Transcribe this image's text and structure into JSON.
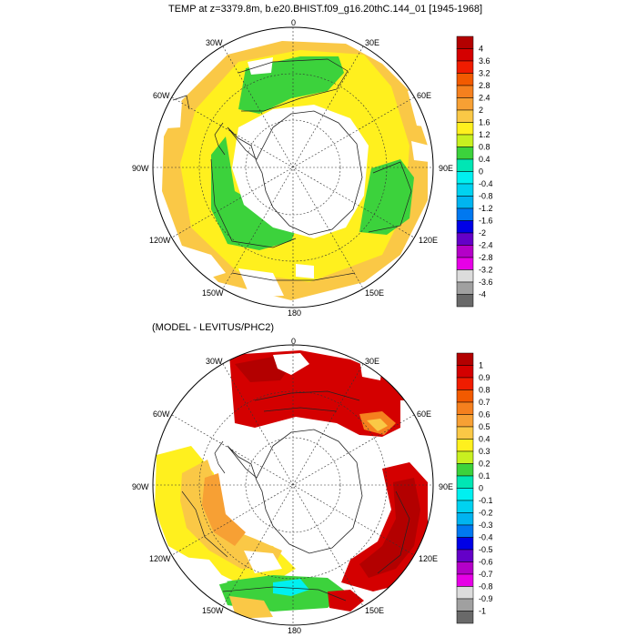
{
  "panels": [
    {
      "title": "TEMP at z=3379.8m, b.e20.BHIST.f09_g16.20thC.144_01 [1945-1968]",
      "longitude_labels": [
        "0",
        "30E",
        "60E",
        "90E",
        "120E",
        "150E",
        "180",
        "150W",
        "120W",
        "90W",
        "60W",
        "30W"
      ],
      "colorbar": {
        "labels": [
          "4",
          "3.6",
          "3.2",
          "2.8",
          "2.4",
          "2",
          "1.6",
          "1.2",
          "0.8",
          "0.4",
          "0",
          "-0.4",
          "-0.8",
          "-1.2",
          "-1.6",
          "-2",
          "-2.4",
          "-2.8",
          "-3.2",
          "-3.6",
          "-4"
        ],
        "colors": [
          "#b30000",
          "#d40000",
          "#f01c00",
          "#f25a00",
          "#f5801e",
          "#f7a034",
          "#fac846",
          "#fff01e",
          "#c8f020",
          "#3cd23c",
          "#00e6b4",
          "#00f0f0",
          "#00d2f0",
          "#00b4f0",
          "#0078f0",
          "#0000e6",
          "#6400c8",
          "#b400c8",
          "#e600e6",
          "#dcdcdc",
          "#a0a0a0",
          "#696969"
        ]
      }
    },
    {
      "title": "(MODEL - LEVITUS/PHC2)",
      "longitude_labels": [
        "0",
        "30E",
        "60E",
        "90E",
        "120E",
        "150E",
        "180",
        "150W",
        "120W",
        "90W",
        "60W",
        "30W"
      ],
      "colorbar": {
        "labels": [
          "1",
          "0.9",
          "0.8",
          "0.7",
          "0.6",
          "0.5",
          "0.4",
          "0.3",
          "0.2",
          "0.1",
          "0",
          "-0.1",
          "-0.2",
          "-0.3",
          "-0.4",
          "-0.5",
          "-0.6",
          "-0.7",
          "-0.8",
          "-0.9",
          "-1"
        ],
        "colors": [
          "#b30000",
          "#d40000",
          "#f01c00",
          "#f25a00",
          "#f5801e",
          "#f7a034",
          "#fac846",
          "#fff01e",
          "#c8f020",
          "#3cd23c",
          "#00e6b4",
          "#00f0f0",
          "#00d2f0",
          "#00b4f0",
          "#0078f0",
          "#0000e6",
          "#6400c8",
          "#b400c8",
          "#e600e6",
          "#dcdcdc",
          "#a0a0a0",
          "#696969"
        ]
      }
    }
  ]
}
